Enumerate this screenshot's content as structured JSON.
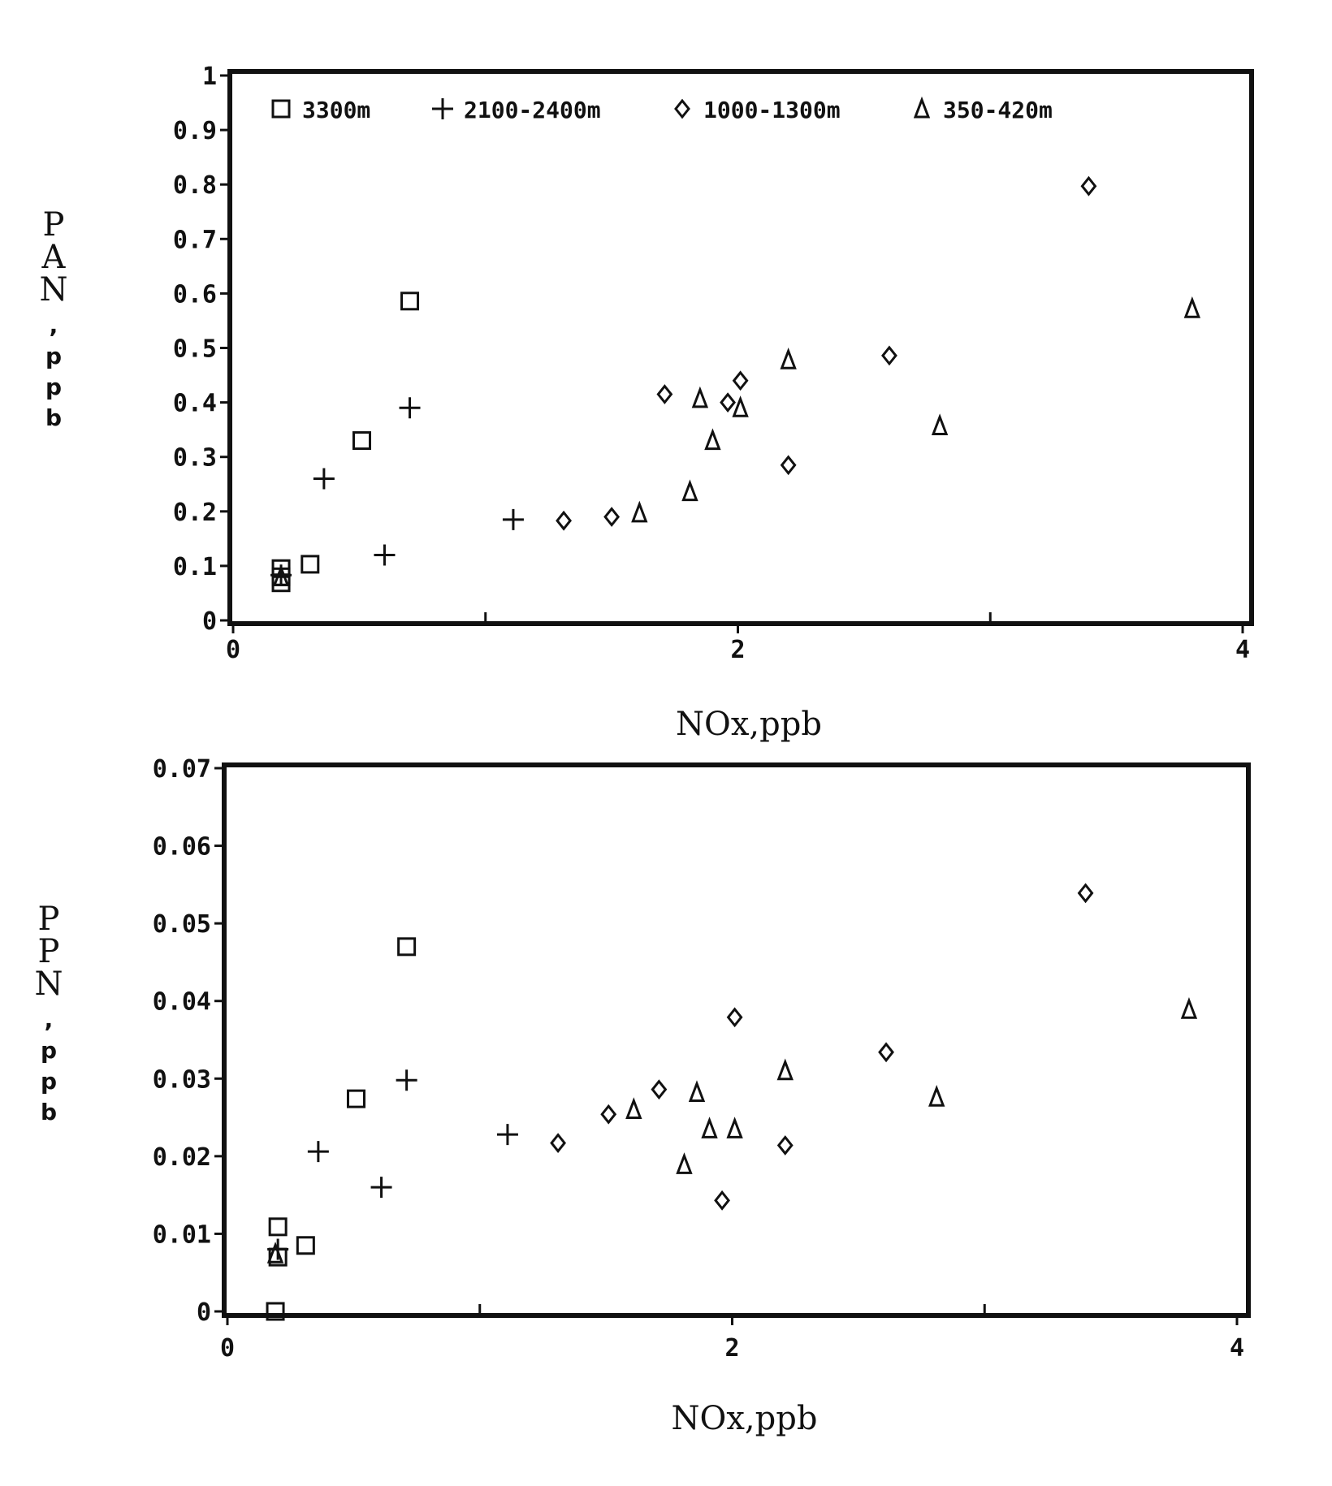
{
  "chart_data": [
    {
      "type": "scatter",
      "title": "",
      "xlabel": "NOx,ppb",
      "ylabel": "PAN,ppb",
      "xlim": [
        0,
        4
      ],
      "ylim": [
        0,
        1
      ],
      "xticks": [
        "0",
        "2",
        "4"
      ],
      "xtick_values": [
        0,
        2,
        4
      ],
      "minor_xticks": [
        1,
        3
      ],
      "yticks": [
        "0",
        "0.1",
        "0.2",
        "0.3",
        "0.4",
        "0.5",
        "0.6",
        "0.7",
        "0.8",
        "0.9",
        "1"
      ],
      "ytick_values": [
        0,
        0.1,
        0.2,
        0.3,
        0.4,
        0.5,
        0.6,
        0.7,
        0.8,
        0.9,
        1
      ],
      "grid": false,
      "legend_position": "top",
      "series": [
        {
          "name": "3300m",
          "marker": "square",
          "points": [
            [
              0.19,
              0.069
            ],
            [
              0.19,
              0.095
            ],
            [
              0.19,
              0.08
            ],
            [
              0.305,
              0.103
            ],
            [
              0.51,
              0.33
            ],
            [
              0.7,
              0.586
            ]
          ]
        },
        {
          "name": "2100-2400m",
          "marker": "plus",
          "points": [
            [
              0.19,
              0.083
            ],
            [
              0.36,
              0.26
            ],
            [
              0.6,
              0.12
            ],
            [
              0.7,
              0.39
            ],
            [
              1.11,
              0.185
            ]
          ]
        },
        {
          "name": "1000-1300m",
          "marker": "diamond",
          "points": [
            [
              1.31,
              0.183
            ],
            [
              1.5,
              0.19
            ],
            [
              1.71,
              0.415
            ],
            [
              1.96,
              0.4
            ],
            [
              2.01,
              0.44
            ],
            [
              2.2,
              0.285
            ],
            [
              2.6,
              0.486
            ],
            [
              3.39,
              0.797
            ]
          ]
        },
        {
          "name": "350-420m",
          "marker": "triangle",
          "points": [
            [
              0.19,
              0.08
            ],
            [
              1.61,
              0.197
            ],
            [
              1.81,
              0.236
            ],
            [
              1.85,
              0.407
            ],
            [
              1.9,
              0.33
            ],
            [
              2.01,
              0.39
            ],
            [
              2.2,
              0.478
            ],
            [
              2.8,
              0.357
            ],
            [
              3.8,
              0.572
            ]
          ]
        }
      ]
    },
    {
      "type": "scatter",
      "title": "",
      "xlabel": "NOx,ppb",
      "ylabel": "PPN,ppb",
      "xlim": [
        0,
        4
      ],
      "ylim": [
        0,
        0.07
      ],
      "xticks": [
        "0",
        "2",
        "4"
      ],
      "xtick_values": [
        0,
        2,
        4
      ],
      "minor_xticks": [
        1,
        3
      ],
      "yticks": [
        "0",
        "0.01",
        "0.02",
        "0.03",
        "0.04",
        "0.05",
        "0.06",
        "0.07"
      ],
      "ytick_values": [
        0,
        0.01,
        0.02,
        0.03,
        0.04,
        0.05,
        0.06,
        0.07
      ],
      "grid": false,
      "legend_position": "none",
      "series": [
        {
          "name": "3300m",
          "marker": "square",
          "points": [
            [
              0.19,
              0.0
            ],
            [
              0.2,
              0.0109
            ],
            [
              0.2,
              0.007
            ],
            [
              0.31,
              0.0085
            ],
            [
              0.51,
              0.0274
            ],
            [
              0.71,
              0.047
            ]
          ]
        },
        {
          "name": "2100-2400m",
          "marker": "plus",
          "points": [
            [
              0.2,
              0.008
            ],
            [
              0.36,
              0.0206
            ],
            [
              0.61,
              0.016
            ],
            [
              0.71,
              0.0298
            ],
            [
              1.11,
              0.0228
            ]
          ]
        },
        {
          "name": "1000-1300m",
          "marker": "diamond",
          "points": [
            [
              1.31,
              0.0217
            ],
            [
              1.51,
              0.0254
            ],
            [
              1.71,
              0.0286
            ],
            [
              1.96,
              0.0143
            ],
            [
              2.01,
              0.0379
            ],
            [
              2.21,
              0.0214
            ],
            [
              2.61,
              0.0334
            ],
            [
              3.4,
              0.0539
            ]
          ]
        },
        {
          "name": "350-420m",
          "marker": "triangle",
          "points": [
            [
              0.19,
              0.0074
            ],
            [
              1.61,
              0.026
            ],
            [
              1.81,
              0.0189
            ],
            [
              1.86,
              0.0282
            ],
            [
              1.91,
              0.0235
            ],
            [
              2.01,
              0.0235
            ],
            [
              2.21,
              0.031
            ],
            [
              2.81,
              0.0276
            ],
            [
              3.81,
              0.0389
            ]
          ]
        }
      ]
    }
  ]
}
